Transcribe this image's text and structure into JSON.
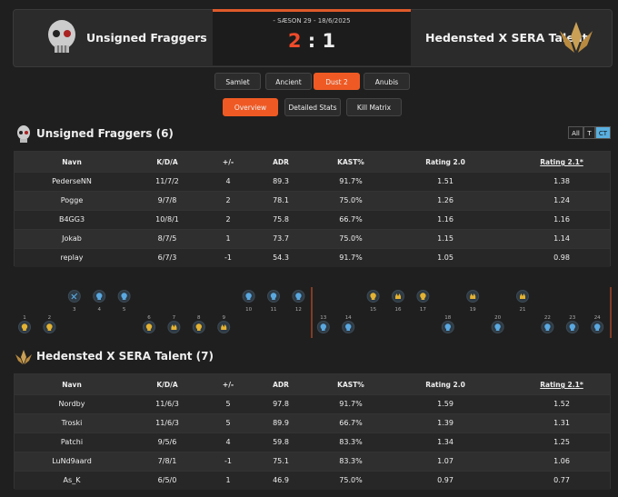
{
  "header": {
    "team1": "Unsigned Fraggers",
    "season": "- SÆSON 29 - 18/6/2025",
    "score1": "2",
    "separator": ":",
    "score2": "1",
    "team2": "Hedensted X SERA Talent"
  },
  "map_tabs": {
    "items": [
      "Samlet",
      "Ancient",
      "Dust 2",
      "Anubis"
    ],
    "active": 2
  },
  "view_tabs": {
    "items": [
      "Overview",
      "Detailed Stats",
      "Kill Matrix"
    ],
    "active": 0
  },
  "side_toggle": {
    "items": [
      "All",
      "T",
      "CT"
    ],
    "active": 2
  },
  "columns": [
    "Navn",
    "K/D/A",
    "+/-",
    "ADR",
    "KAST%",
    "Rating 2.0",
    "Rating 2.1*"
  ],
  "teams": [
    {
      "title": "Unsigned Fraggers (6)",
      "rows": [
        [
          "PederseNN",
          "11/7/2",
          "4",
          "89.3",
          "91.7%",
          "1.51",
          "1.38"
        ],
        [
          "Pogge",
          "9/7/8",
          "2",
          "78.1",
          "75.0%",
          "1.26",
          "1.24"
        ],
        [
          "B4GG3",
          "10/8/1",
          "2",
          "75.8",
          "66.7%",
          "1.16",
          "1.16"
        ],
        [
          "Jokab",
          "8/7/5",
          "1",
          "73.7",
          "75.0%",
          "1.15",
          "1.14"
        ],
        [
          "replay",
          "6/7/3",
          "-1",
          "54.3",
          "91.7%",
          "1.05",
          "0.98"
        ]
      ]
    },
    {
      "title": "Hedensted X SERA Talent (7)",
      "rows": [
        [
          "Nordby",
          "11/6/3",
          "5",
          "97.8",
          "91.7%",
          "1.59",
          "1.52"
        ],
        [
          "Troski",
          "11/6/3",
          "5",
          "89.9",
          "66.7%",
          "1.39",
          "1.31"
        ],
        [
          "Patchi",
          "9/5/6",
          "4",
          "59.8",
          "83.3%",
          "1.34",
          "1.25"
        ],
        [
          "LuNd9aard",
          "7/8/1",
          "-1",
          "75.1",
          "83.3%",
          "1.07",
          "1.06"
        ],
        [
          "As_K",
          "6/5/0",
          "1",
          "46.9",
          "75.0%",
          "0.97",
          "0.77"
        ]
      ]
    }
  ],
  "rounds": [
    {
      "number": 1,
      "row": "bottom",
      "side": "T",
      "icon": "elimination"
    },
    {
      "number": 2,
      "row": "bottom",
      "side": "T",
      "icon": "elimination"
    },
    {
      "number": 3,
      "row": "top",
      "side": "CT",
      "icon": "time"
    },
    {
      "number": 4,
      "row": "top",
      "side": "CT",
      "icon": "elimination"
    },
    {
      "number": 5,
      "row": "top",
      "side": "CT",
      "icon": "elimination"
    },
    {
      "number": 6,
      "row": "bottom",
      "side": "T",
      "icon": "elimination"
    },
    {
      "number": 7,
      "row": "bottom",
      "side": "T",
      "icon": "bomb"
    },
    {
      "number": 8,
      "row": "bottom",
      "side": "T",
      "icon": "elimination"
    },
    {
      "number": 9,
      "row": "bottom",
      "side": "T",
      "icon": "bomb"
    },
    {
      "number": 10,
      "row": "top",
      "side": "CT",
      "icon": "elimination"
    },
    {
      "number": 11,
      "row": "top",
      "side": "CT",
      "icon": "elimination"
    },
    {
      "number": 12,
      "row": "top",
      "side": "CT",
      "icon": "elimination"
    },
    {
      "number": 13,
      "row": "bottom",
      "side": "CT",
      "icon": "elimination"
    },
    {
      "number": 14,
      "row": "bottom",
      "side": "CT",
      "icon": "elimination"
    },
    {
      "number": 15,
      "row": "top",
      "side": "T",
      "icon": "elimination"
    },
    {
      "number": 16,
      "row": "top",
      "side": "T",
      "icon": "bomb"
    },
    {
      "number": 17,
      "row": "top",
      "side": "T",
      "icon": "elimination"
    },
    {
      "number": 18,
      "row": "bottom",
      "side": "CT",
      "icon": "elimination"
    },
    {
      "number": 19,
      "row": "top",
      "side": "T",
      "icon": "bomb"
    },
    {
      "number": 20,
      "row": "bottom",
      "side": "CT",
      "icon": "elimination"
    },
    {
      "number": 21,
      "row": "top",
      "side": "T",
      "icon": "bomb"
    },
    {
      "number": 22,
      "row": "bottom",
      "side": "CT",
      "icon": "elimination"
    },
    {
      "number": 23,
      "row": "bottom",
      "side": "CT",
      "icon": "elimination"
    },
    {
      "number": 24,
      "row": "bottom",
      "side": "CT",
      "icon": "elimination"
    }
  ]
}
